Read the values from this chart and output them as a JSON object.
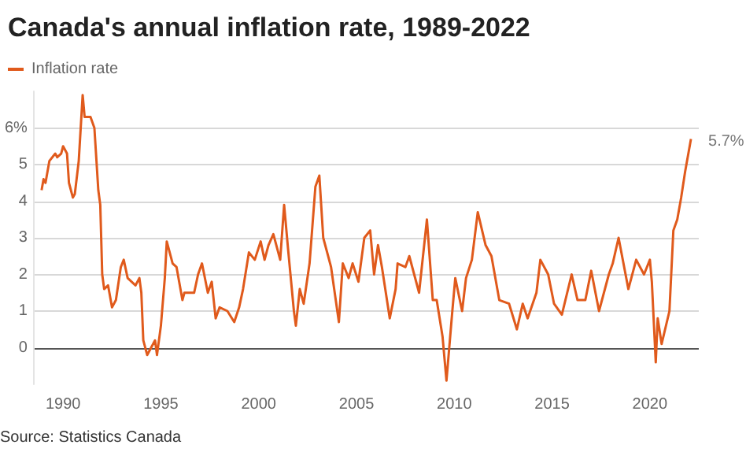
{
  "chart_data": {
    "type": "line",
    "title": "Canada's annual inflation rate, 1989-2022",
    "series": [
      {
        "name": "Inflation rate",
        "color": "#e05a1c",
        "x": [
          1988.9,
          1989.0,
          1989.1,
          1989.3,
          1989.6,
          1989.7,
          1989.9,
          1990.0,
          1990.2,
          1990.3,
          1990.5,
          1990.6,
          1990.8,
          1991.0,
          1991.1,
          1991.4,
          1991.6,
          1991.8,
          1991.9,
          1992.0,
          1992.1,
          1992.3,
          1992.5,
          1992.7,
          1992.95,
          1993.1,
          1993.3,
          1993.7,
          1993.9,
          1994.0,
          1994.1,
          1994.3,
          1994.5,
          1994.7,
          1994.8,
          1995.0,
          1995.2,
          1995.3,
          1995.6,
          1995.8,
          1996.1,
          1996.2,
          1996.5,
          1996.7,
          1996.9,
          1997.1,
          1997.4,
          1997.6,
          1997.8,
          1998.0,
          1998.4,
          1998.75,
          1999.0,
          1999.2,
          1999.5,
          1999.8,
          2000.1,
          2000.3,
          2000.5,
          2000.75,
          2001.1,
          2001.3,
          2001.5,
          2001.8,
          2001.9,
          2002.1,
          2002.3,
          2002.6,
          2002.9,
          2003.1,
          2003.3,
          2003.7,
          2004.1,
          2004.3,
          2004.6,
          2004.8,
          2005.1,
          2005.4,
          2005.7,
          2005.9,
          2006.1,
          2006.3,
          2006.7,
          2007.0,
          2007.1,
          2007.5,
          2007.7,
          2008.2,
          2008.6,
          2008.9,
          2009.1,
          2009.4,
          2009.6,
          2009.9,
          2010.05,
          2010.4,
          2010.6,
          2010.9,
          2011.2,
          2011.6,
          2011.9,
          2012.3,
          2012.8,
          2013.2,
          2013.5,
          2013.75,
          2014.2,
          2014.4,
          2014.8,
          2015.1,
          2015.5,
          2016.0,
          2016.3,
          2016.7,
          2017.0,
          2017.4,
          2017.9,
          2018.1,
          2018.4,
          2018.9,
          2019.3,
          2019.7,
          2020.0,
          2020.1,
          2020.3,
          2020.4,
          2020.6,
          2021.0,
          2021.2,
          2021.4,
          2021.6,
          2021.8,
          2022.1
        ],
        "values": [
          4.3,
          4.6,
          4.5,
          5.1,
          5.3,
          5.2,
          5.3,
          5.5,
          5.3,
          4.5,
          4.1,
          4.2,
          5.1,
          6.9,
          6.3,
          6.3,
          6.0,
          4.3,
          3.9,
          2.0,
          1.6,
          1.7,
          1.1,
          1.3,
          2.2,
          2.4,
          1.9,
          1.7,
          1.9,
          1.5,
          0.2,
          -0.2,
          0.0,
          0.2,
          -0.2,
          0.6,
          1.9,
          2.9,
          2.3,
          2.2,
          1.3,
          1.5,
          1.5,
          1.5,
          2.0,
          2.3,
          1.5,
          1.8,
          0.8,
          1.1,
          1.0,
          0.7,
          1.1,
          1.6,
          2.6,
          2.4,
          2.9,
          2.4,
          2.8,
          3.1,
          2.4,
          3.9,
          2.7,
          1.0,
          0.6,
          1.6,
          1.2,
          2.3,
          4.4,
          4.7,
          3.0,
          2.2,
          0.7,
          2.3,
          1.9,
          2.3,
          1.8,
          3.0,
          3.2,
          2.0,
          2.8,
          2.2,
          0.8,
          1.6,
          2.3,
          2.2,
          2.5,
          1.5,
          3.5,
          1.3,
          1.3,
          0.3,
          -0.9,
          1.0,
          1.9,
          1.0,
          1.9,
          2.4,
          3.7,
          2.8,
          2.5,
          1.3,
          1.2,
          0.5,
          1.2,
          0.8,
          1.5,
          2.4,
          2.0,
          1.2,
          0.9,
          2.0,
          1.3,
          1.3,
          2.1,
          1.0,
          2.0,
          2.3,
          3.0,
          1.6,
          2.4,
          2.0,
          2.4,
          1.8,
          -0.4,
          0.8,
          0.1,
          1.0,
          3.2,
          3.5,
          4.1,
          4.8,
          5.7
        ]
      }
    ],
    "xlim": [
      1988.5,
      2022.5
    ],
    "xticks": [
      1990,
      1995,
      2000,
      2005,
      2010,
      2015,
      2020
    ],
    "ylim": [
      -1,
      7
    ],
    "yticks": [
      0,
      1,
      2,
      3,
      4,
      5,
      {
        "value": 6,
        "label": "6%"
      }
    ],
    "grid": "y",
    "legend": "top left",
    "marker": "none",
    "line_style": "solid",
    "annotations": [
      {
        "text": "5.7%",
        "x": 2022.1,
        "y": 5.7
      },
      "Source: Statistics Canada"
    ]
  }
}
